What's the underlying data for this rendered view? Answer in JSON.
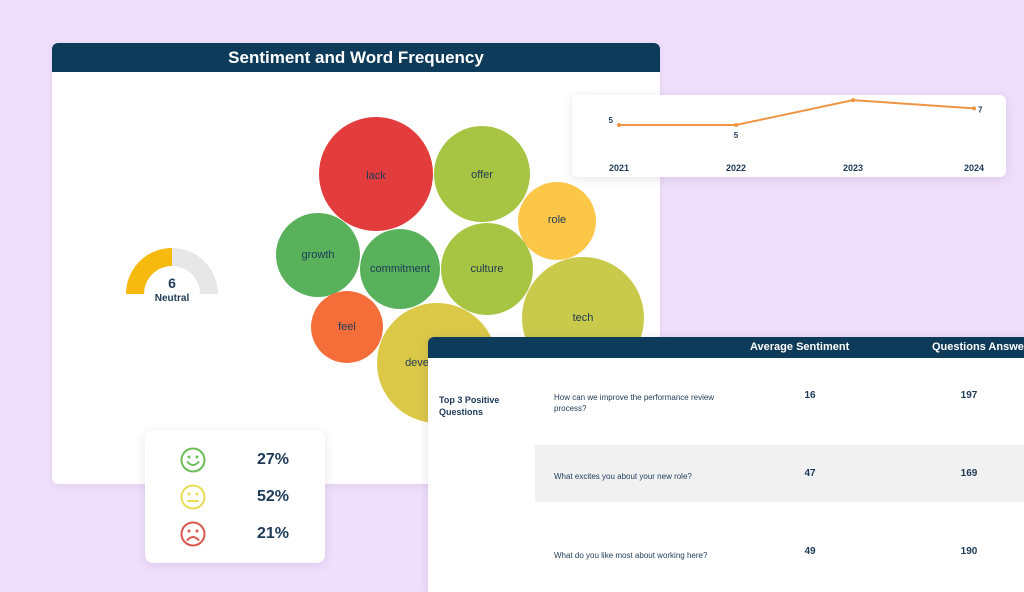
{
  "main_card": {
    "title": "Sentiment and Word Frequency"
  },
  "bubbles": [
    {
      "word": "lack",
      "color": "#e23c3c"
    },
    {
      "word": "offer",
      "color": "#a7c443"
    },
    {
      "word": "role",
      "color": "#fcc648"
    },
    {
      "word": "growth",
      "color": "#59b15c"
    },
    {
      "word": "commitment",
      "color": "#59b15c"
    },
    {
      "word": "culture",
      "color": "#a7c443"
    },
    {
      "word": "tech",
      "color": "#c9ca4b"
    },
    {
      "word": "feel",
      "color": "#f56e3a"
    },
    {
      "word": "deve",
      "color": "#dcc847"
    }
  ],
  "gauge": {
    "value": "6",
    "label": "Neutral",
    "fraction": 0.5,
    "fill_color": "#f6b90e",
    "track_color": "#e7e7e7"
  },
  "trend_chart": {
    "type": "line",
    "x": [
      "2021",
      "2022",
      "2023",
      "2024"
    ],
    "values": [
      5,
      5,
      8,
      7
    ],
    "line_color": "#ef9544"
  },
  "sentiment_breakdown": [
    {
      "icon": "happy-face-icon",
      "percent": "27%",
      "color": "#6cbf58"
    },
    {
      "icon": "neutral-face-icon",
      "percent": "52%",
      "color": "#eadb55"
    },
    {
      "icon": "sad-face-icon",
      "percent": "21%",
      "color": "#d9584d"
    }
  ],
  "questions_table": {
    "headers": {
      "avg_sentiment": "Average Sentiment",
      "answered": "Questions Answe"
    },
    "group_label": "Top 3 Positive Questions",
    "rows": [
      {
        "question": "How can we improve the performance review process?",
        "avg": "16",
        "answered": "197"
      },
      {
        "question": "What excites you about your new role?",
        "avg": "47",
        "answered": "169"
      },
      {
        "question": "What do you like most about working here?",
        "avg": "49",
        "answered": "190"
      }
    ]
  }
}
